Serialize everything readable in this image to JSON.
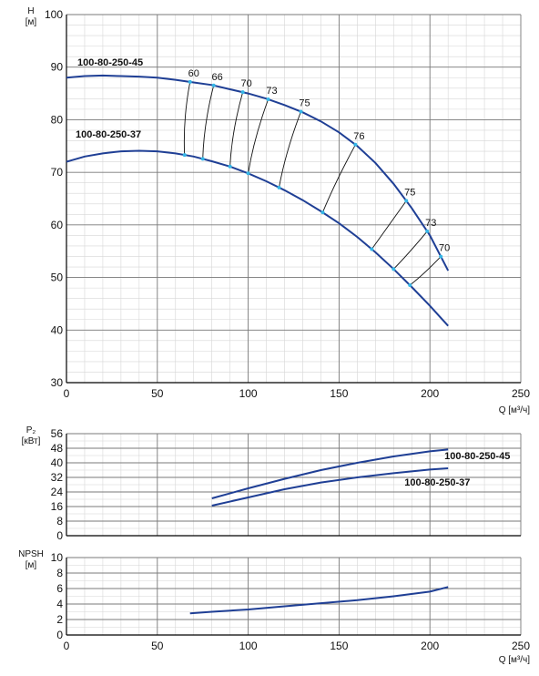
{
  "colors": {
    "curve": "#1f3f95",
    "marker": "#35b6e6",
    "grid_major": "#7a7a7a",
    "grid_minor": "#d6d6d6",
    "axis": "#000000"
  },
  "chart_data": [
    {
      "type": "line",
      "title": "",
      "ylabel_line1": "H",
      "ylabel_line2": "[м]",
      "xlabel": "Q [м³/ч]",
      "xlim": [
        0,
        250
      ],
      "ylim": [
        30,
        100
      ],
      "xticks": [
        "0",
        "50",
        "100",
        "150",
        "200",
        "250"
      ],
      "yticks": [
        "30",
        "40",
        "50",
        "60",
        "70",
        "80",
        "90",
        "100"
      ],
      "series": [
        {
          "name": "100-80-250-45",
          "x": [
            0,
            10,
            20,
            30,
            40,
            50,
            60,
            70,
            80,
            90,
            100,
            110,
            120,
            130,
            140,
            150,
            160,
            170,
            180,
            190,
            200,
            210
          ],
          "y": [
            88.0,
            88.3,
            88.4,
            88.3,
            88.2,
            88.0,
            87.6,
            87.1,
            86.6,
            85.8,
            85.0,
            84.0,
            82.8,
            81.4,
            79.7,
            77.6,
            75.0,
            71.8,
            67.8,
            63.2,
            58.0,
            51.3
          ]
        },
        {
          "name": "100-80-250-37",
          "x": [
            0,
            10,
            20,
            30,
            40,
            50,
            60,
            70,
            80,
            90,
            100,
            110,
            120,
            130,
            140,
            150,
            160,
            170,
            180,
            190,
            200,
            210
          ],
          "y": [
            72.0,
            73.0,
            73.6,
            74.0,
            74.1,
            74.0,
            73.6,
            73.0,
            72.1,
            71.1,
            69.8,
            68.3,
            66.6,
            64.7,
            62.6,
            60.3,
            57.7,
            54.8,
            51.6,
            48.2,
            44.6,
            40.8
          ]
        }
      ],
      "efficiency_lines": [
        {
          "label": "60",
          "q45": 68.0,
          "q37": 65.0
        },
        {
          "label": "66",
          "q45": 81.0,
          "q37": 75.0
        },
        {
          "label": "70",
          "q45": 97.0,
          "q37": 90.0
        },
        {
          "label": "73",
          "q45": 111.0,
          "q37": 100.0
        },
        {
          "label": "75",
          "q45": 129.0,
          "q37": 117.0
        },
        {
          "label": "76",
          "q45": 159.0,
          "q37": 141.0
        },
        {
          "label": "75",
          "q45": 187.0,
          "q37": 168.0
        },
        {
          "label": "73",
          "q45": 198.5,
          "q37": 180.0
        },
        {
          "label": "70",
          "q45": 206.0,
          "q37": 189.0
        }
      ]
    },
    {
      "type": "line",
      "title": "",
      "ylabel_line1": "P₂",
      "ylabel_line2": "[кВт]",
      "xlim": [
        0,
        250
      ],
      "ylim": [
        0,
        56
      ],
      "yticks": [
        "0",
        "8",
        "16",
        "24",
        "32",
        "40",
        "48",
        "56"
      ],
      "series": [
        {
          "name": "100-80-250-45",
          "x": [
            80,
            100,
            120,
            140,
            160,
            180,
            200,
            210
          ],
          "y": [
            20.5,
            26.0,
            31.2,
            36.0,
            40.0,
            43.5,
            46.3,
            47.3
          ]
        },
        {
          "name": "100-80-250-37",
          "x": [
            80,
            100,
            120,
            140,
            160,
            180,
            200,
            210
          ],
          "y": [
            16.5,
            21.0,
            25.5,
            29.2,
            32.0,
            34.3,
            36.3,
            37.0
          ]
        }
      ]
    },
    {
      "type": "line",
      "title": "",
      "ylabel_line1": "NPSH",
      "ylabel_line2": "[м]",
      "xlabel": "Q [м³/ч]",
      "xlim": [
        0,
        250
      ],
      "ylim": [
        0,
        10
      ],
      "xticks": [
        "0",
        "50",
        "100",
        "150",
        "200",
        "250"
      ],
      "yticks": [
        "0",
        "2",
        "4",
        "6",
        "8",
        "10"
      ],
      "series": [
        {
          "name": "",
          "x": [
            68,
            80,
            100,
            120,
            140,
            160,
            180,
            200,
            210
          ],
          "y": [
            2.8,
            3.0,
            3.3,
            3.7,
            4.1,
            4.5,
            5.0,
            5.6,
            6.2
          ]
        }
      ]
    }
  ]
}
